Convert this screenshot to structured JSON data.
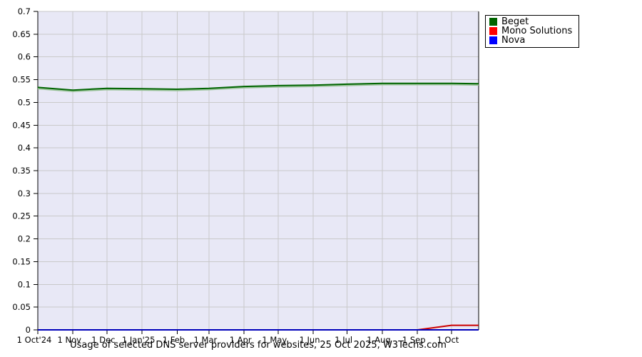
{
  "title": "Usage of selected DNS server providers for websites, 25 Oct 2025, W3Techs.com",
  "legend": {
    "items": [
      {
        "label": "Beget",
        "color": "#006400"
      },
      {
        "label": "Mono Solutions",
        "color": "#ff0000"
      },
      {
        "label": "Nova",
        "color": "#0000ff"
      }
    ]
  },
  "colors": {
    "page_bg": "#ffffff",
    "plot_bg": "#e8e8f6",
    "grid": "#c9c9c9",
    "axis": "#000000",
    "beget_line": "#006400",
    "beget_highlight": "#9cc49c",
    "mono_solutions_line": "#cc0000",
    "nova_line": "#0000bb"
  },
  "chart_data": {
    "type": "line",
    "title": "Usage of selected DNS server providers for websites, 25 Oct 2025, W3Techs.com",
    "x_range": [
      "1 Oct 2024",
      "25 Oct 2025"
    ],
    "x_total_days": 389,
    "x_tick_labels": [
      "1 Oct'24",
      "1 Nov",
      "1 Dec",
      "1 Jan'25",
      "1 Feb",
      "1 Mar",
      "1 Apr",
      "1 May",
      "1 Jun",
      "1 Jul",
      "1 Aug",
      "1 Sep",
      "1 Oct"
    ],
    "x_tick_day_offsets": [
      0,
      31,
      61,
      92,
      123,
      151,
      182,
      212,
      243,
      273,
      304,
      335,
      365
    ],
    "ylim": [
      0,
      0.7
    ],
    "y_tick_step": 0.05,
    "y_tick_labels": [
      "0",
      "0.05",
      "0.1",
      "0.15",
      "0.2",
      "0.25",
      "0.3",
      "0.35",
      "0.4",
      "0.45",
      "0.5",
      "0.55",
      "0.6",
      "0.65",
      "0.7"
    ],
    "grid": true,
    "legend_position": "outside-top-right",
    "point_day_offsets": [
      0,
      31,
      61,
      92,
      123,
      151,
      182,
      212,
      243,
      273,
      304,
      335,
      365,
      389
    ],
    "series": [
      {
        "name": "Mono Solutions",
        "color": "#cc0000",
        "values": [
          0,
          0,
          0,
          0,
          0,
          0,
          0,
          0,
          0,
          0,
          0,
          0,
          0.01,
          0.01
        ]
      },
      {
        "name": "Nova",
        "color": "#0000bb",
        "values": [
          0,
          0,
          0,
          0,
          0,
          0,
          0,
          0,
          0,
          0,
          0,
          0,
          0,
          0
        ]
      },
      {
        "name": "Beget",
        "color": "#006400",
        "highlight": "#9cc49c",
        "values": [
          0.533,
          0.527,
          0.531,
          0.53,
          0.529,
          0.531,
          0.535,
          0.537,
          0.538,
          0.54,
          0.542,
          0.542,
          0.542,
          0.541
        ]
      }
    ]
  }
}
